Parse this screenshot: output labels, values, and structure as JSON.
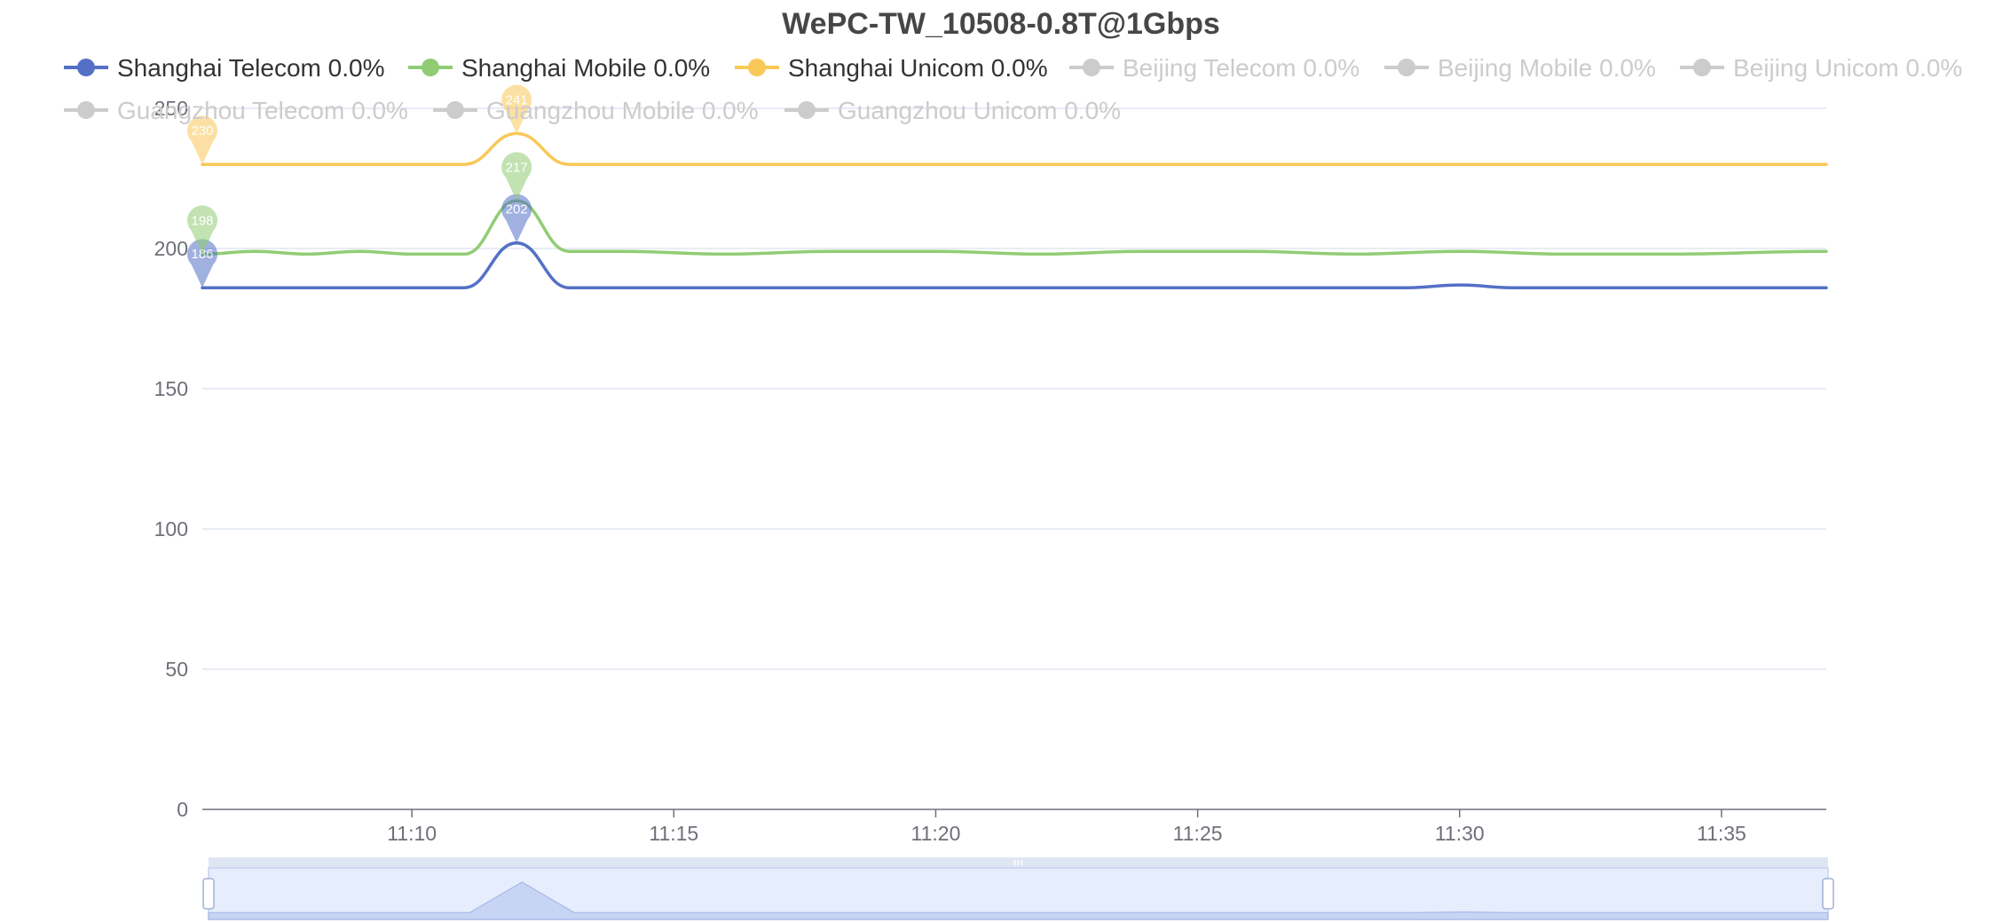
{
  "chart_data": {
    "type": "line",
    "title": "WePC-TW_10508-0.8T@1Gbps",
    "xlabel": "",
    "ylabel": "",
    "x_ticks": [
      "11:10",
      "11:15",
      "11:20",
      "11:25",
      "11:30",
      "11:35"
    ],
    "x_range": [
      "11:06",
      "11:37"
    ],
    "ylim": [
      0,
      250
    ],
    "y_ticks": [
      0,
      50,
      100,
      150,
      200,
      250
    ],
    "grid": true,
    "legend_position": "top",
    "data_zoom_slider": true,
    "legend": [
      {
        "name": "Shanghai Telecom 0.0%",
        "color": "#5470c6",
        "active": true
      },
      {
        "name": "Shanghai Mobile 0.0%",
        "color": "#91cc75",
        "active": true
      },
      {
        "name": "Shanghai Unicom 0.0%",
        "color": "#fac858",
        "active": true
      },
      {
        "name": "Beijing Telecom 0.0%",
        "color": "#cccccc",
        "active": false
      },
      {
        "name": "Beijing Mobile 0.0%",
        "color": "#cccccc",
        "active": false
      },
      {
        "name": "Beijing Unicom 0.0%",
        "color": "#cccccc",
        "active": false
      },
      {
        "name": "Guangzhou Telecom 0.0%",
        "color": "#cccccc",
        "active": false
      },
      {
        "name": "Guangzhou Mobile 0.0%",
        "color": "#cccccc",
        "active": false
      },
      {
        "name": "Guangzhou Unicom 0.0%",
        "color": "#cccccc",
        "active": false
      }
    ],
    "series": [
      {
        "name": "Shanghai Telecom 0.0%",
        "color": "#5470c6",
        "x": [
          "11:06",
          "11:08",
          "11:10",
          "11:11",
          "11:12",
          "11:13",
          "11:15",
          "11:20",
          "11:25",
          "11:29",
          "11:30",
          "11:31",
          "11:33",
          "11:37"
        ],
        "values": [
          186,
          186,
          186,
          186,
          202,
          186,
          186,
          186,
          186,
          186,
          187,
          186,
          186,
          186
        ],
        "markers": [
          {
            "label": "186",
            "x": "11:06",
            "value": 186
          },
          {
            "label": "202",
            "x": "11:12",
            "value": 202
          }
        ]
      },
      {
        "name": "Shanghai Mobile 0.0%",
        "color": "#91cc75",
        "x": [
          "11:06",
          "11:07",
          "11:08",
          "11:09",
          "11:10",
          "11:11",
          "11:12",
          "11:13",
          "11:14",
          "11:16",
          "11:18",
          "11:20",
          "11:22",
          "11:24",
          "11:26",
          "11:28",
          "11:30",
          "11:32",
          "11:34",
          "11:37"
        ],
        "values": [
          198,
          199,
          198,
          199,
          198,
          198,
          217,
          199,
          199,
          198,
          199,
          199,
          198,
          199,
          199,
          198,
          199,
          198,
          198,
          199
        ],
        "markers": [
          {
            "label": "198",
            "x": "11:06",
            "value": 198
          },
          {
            "label": "217",
            "x": "11:12",
            "value": 217
          }
        ]
      },
      {
        "name": "Shanghai Unicom 0.0%",
        "color": "#fac858",
        "x": [
          "11:06",
          "11:08",
          "11:10",
          "11:11",
          "11:12",
          "11:13",
          "11:15",
          "11:20",
          "11:25",
          "11:30",
          "11:37"
        ],
        "values": [
          230,
          230,
          230,
          230,
          241,
          230,
          230,
          230,
          230,
          230,
          230
        ],
        "markers": [
          {
            "label": "230",
            "x": "11:06",
            "value": 230
          },
          {
            "label": "241",
            "x": "11:12",
            "value": 241
          }
        ]
      }
    ],
    "slider_overview": {
      "x": [
        "11:06",
        "11:11",
        "11:12",
        "11:13",
        "11:29",
        "11:30",
        "11:31",
        "11:37"
      ],
      "values": [
        186,
        186,
        241,
        186,
        186,
        187,
        186,
        186
      ]
    }
  }
}
